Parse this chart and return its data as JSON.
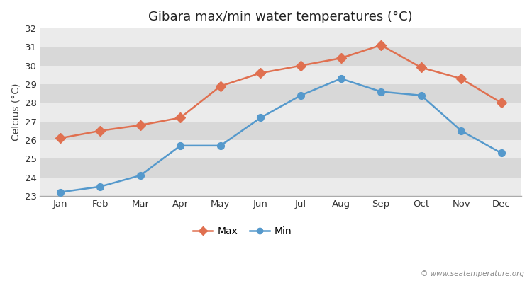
{
  "title": "Gibara max/min water temperatures (°C)",
  "xlabel": "",
  "ylabel": "Celcius (°C)",
  "months": [
    "Jan",
    "Feb",
    "Mar",
    "Apr",
    "May",
    "Jun",
    "Jul",
    "Aug",
    "Sep",
    "Oct",
    "Nov",
    "Dec"
  ],
  "max_values": [
    26.1,
    26.5,
    26.8,
    27.2,
    28.9,
    29.6,
    30.0,
    30.4,
    31.1,
    29.9,
    29.3,
    28.0
  ],
  "min_values": [
    23.2,
    23.5,
    24.1,
    25.7,
    25.7,
    27.2,
    28.4,
    29.3,
    28.6,
    28.4,
    26.5,
    25.3
  ],
  "max_color": "#e07050",
  "min_color": "#5599cc",
  "figure_bg_color": "#ffffff",
  "plot_bg_color": "#e0e0e0",
  "band_light": "#ebebeb",
  "band_dark": "#d8d8d8",
  "ylim": [
    23,
    32
  ],
  "yticks": [
    23,
    24,
    25,
    26,
    27,
    28,
    29,
    30,
    31,
    32
  ],
  "watermark": "© www.seatemperature.org",
  "legend_labels": [
    "Max",
    "Min"
  ],
  "title_fontsize": 13,
  "axis_label_fontsize": 10,
  "tick_fontsize": 9.5
}
